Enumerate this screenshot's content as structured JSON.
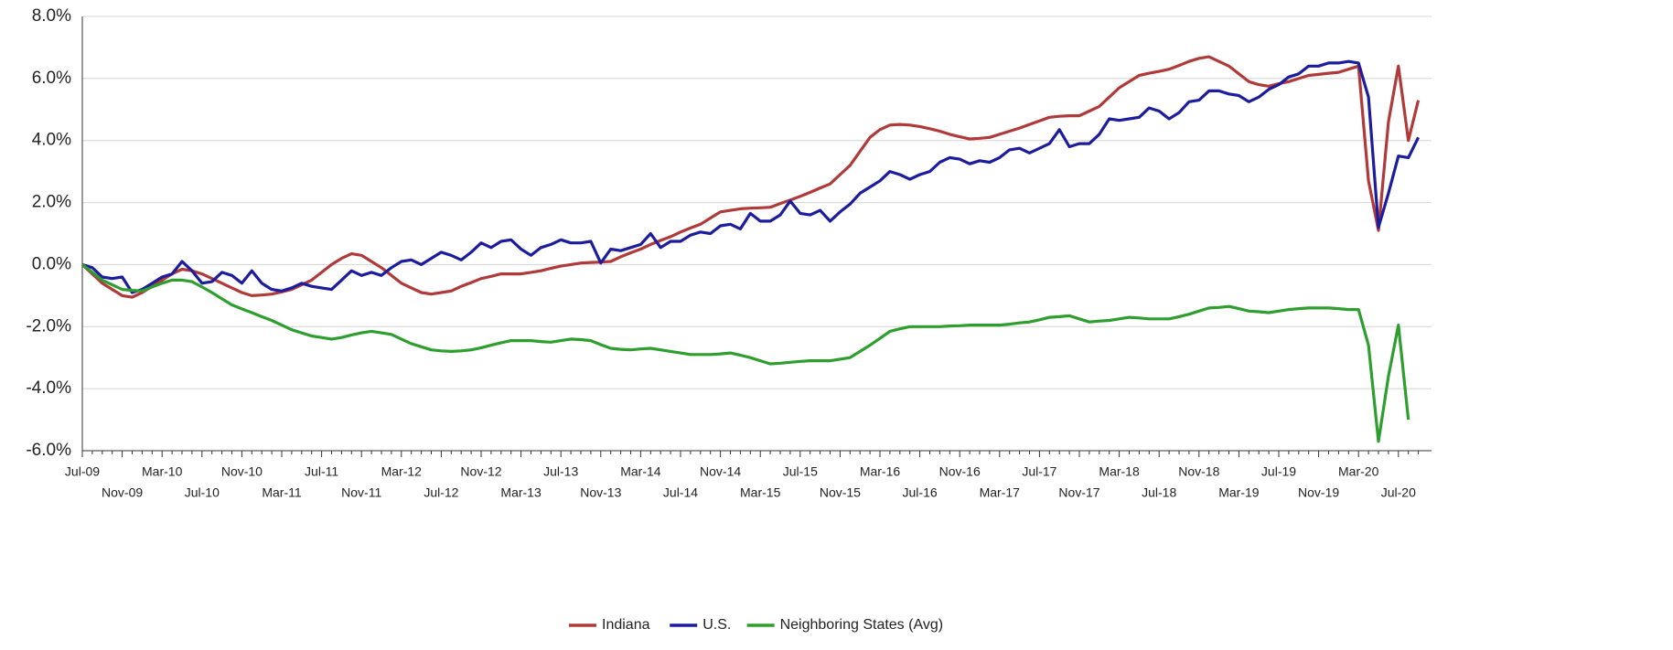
{
  "chart_data": {
    "type": "line",
    "categories": [
      "Jul-09",
      null,
      null,
      null,
      "Nov-09",
      null,
      null,
      null,
      "Mar-10",
      null,
      null,
      null,
      "Jul-10",
      null,
      null,
      null,
      "Nov-10",
      null,
      null,
      null,
      "Mar-11",
      null,
      null,
      null,
      "Jul-11",
      null,
      null,
      null,
      "Nov-11",
      null,
      null,
      null,
      "Mar-12",
      null,
      null,
      null,
      "Jul-12",
      null,
      null,
      null,
      "Nov-12",
      null,
      null,
      null,
      "Mar-13",
      null,
      null,
      null,
      "Jul-13",
      null,
      null,
      null,
      "Nov-13",
      null,
      null,
      null,
      "Mar-14",
      null,
      null,
      null,
      "Jul-14",
      null,
      null,
      null,
      "Nov-14",
      null,
      null,
      null,
      "Mar-15",
      null,
      null,
      null,
      "Jul-15",
      null,
      null,
      null,
      "Nov-15",
      null,
      null,
      null,
      "Mar-16",
      null,
      null,
      null,
      "Jul-16",
      null,
      null,
      null,
      "Nov-16",
      null,
      null,
      null,
      "Mar-17",
      null,
      null,
      null,
      "Jul-17",
      null,
      null,
      null,
      "Nov-17",
      null,
      null,
      null,
      "Mar-18",
      null,
      null,
      null,
      "Jul-18",
      null,
      null,
      null,
      "Nov-18",
      null,
      null,
      null,
      "Mar-19",
      null,
      null,
      null,
      "Jul-19",
      null,
      null,
      null,
      "Nov-19",
      null,
      null,
      null,
      "Mar-20",
      null,
      null,
      null,
      "Jul-20",
      null,
      null
    ],
    "series": [
      {
        "name": "Indiana",
        "color": "#b03a3a",
        "values": [
          0,
          -0.3,
          -0.6,
          -0.8,
          -1.0,
          -1.05,
          -0.9,
          -0.7,
          -0.5,
          -0.3,
          -0.15,
          -0.2,
          -0.3,
          -0.45,
          -0.6,
          -0.75,
          -0.9,
          -1.0,
          -0.98,
          -0.95,
          -0.88,
          -0.8,
          -0.65,
          -0.5,
          -0.25,
          0,
          0.2,
          0.35,
          0.3,
          0.1,
          -0.1,
          -0.35,
          -0.6,
          -0.75,
          -0.9,
          -0.95,
          -0.9,
          -0.85,
          -0.7,
          -0.58,
          -0.45,
          -0.38,
          -0.3,
          -0.3,
          -0.3,
          -0.25,
          -0.2,
          -0.12,
          -0.05,
          0,
          0.05,
          0.07,
          0.08,
          0.1,
          0.25,
          0.38,
          0.5,
          0.65,
          0.78,
          0.9,
          1.05,
          1.18,
          1.3,
          1.5,
          1.7,
          1.75,
          1.8,
          1.82,
          1.83,
          1.85,
          1.97,
          2.08,
          2.2,
          2.33,
          2.47,
          2.6,
          2.9,
          3.2,
          3.65,
          4.1,
          4.35,
          4.5,
          4.52,
          4.5,
          4.45,
          4.38,
          4.3,
          4.2,
          4.12,
          4.05,
          4.07,
          4.1,
          4.2,
          4.3,
          4.4,
          4.52,
          4.63,
          4.75,
          4.78,
          4.8,
          4.8,
          4.95,
          5.1,
          5.4,
          5.7,
          5.9,
          6.1,
          6.17,
          6.23,
          6.3,
          6.42,
          6.55,
          6.65,
          6.7,
          6.55,
          6.4,
          6.15,
          5.9,
          5.8,
          5.75,
          5.83,
          5.9,
          6.0,
          6.1,
          6.13,
          6.17,
          6.2,
          6.3,
          6.4,
          2.7,
          1.1,
          4.6,
          6.4,
          4.0,
          5.3
        ]
      },
      {
        "name": "U.S.",
        "color": "#1c1c9e",
        "values": [
          0,
          -0.1,
          -0.4,
          -0.45,
          -0.4,
          -0.9,
          -0.8,
          -0.6,
          -0.4,
          -0.3,
          0.1,
          -0.2,
          -0.6,
          -0.55,
          -0.25,
          -0.35,
          -0.6,
          -0.2,
          -0.6,
          -0.8,
          -0.85,
          -0.75,
          -0.6,
          -0.7,
          -0.75,
          -0.8,
          -0.5,
          -0.2,
          -0.35,
          -0.25,
          -0.35,
          -0.1,
          0.1,
          0.15,
          0,
          0.2,
          0.4,
          0.3,
          0.15,
          0.4,
          0.7,
          0.55,
          0.75,
          0.8,
          0.5,
          0.3,
          0.55,
          0.65,
          0.8,
          0.7,
          0.7,
          0.75,
          0.05,
          0.5,
          0.45,
          0.55,
          0.65,
          1.0,
          0.55,
          0.75,
          0.75,
          0.95,
          1.05,
          1.0,
          1.25,
          1.3,
          1.15,
          1.65,
          1.4,
          1.4,
          1.6,
          2.05,
          1.65,
          1.6,
          1.75,
          1.4,
          1.7,
          1.95,
          2.3,
          2.5,
          2.7,
          3.0,
          2.9,
          2.75,
          2.9,
          3.0,
          3.3,
          3.45,
          3.4,
          3.25,
          3.35,
          3.3,
          3.45,
          3.7,
          3.75,
          3.6,
          3.75,
          3.9,
          4.35,
          3.8,
          3.9,
          3.9,
          4.2,
          4.7,
          4.65,
          4.7,
          4.75,
          5.05,
          4.95,
          4.7,
          4.9,
          5.25,
          5.3,
          5.6,
          5.6,
          5.5,
          5.45,
          5.25,
          5.4,
          5.65,
          5.8,
          6.05,
          6.15,
          6.4,
          6.4,
          6.5,
          6.5,
          6.55,
          6.5,
          5.4,
          1.2,
          2.3,
          3.5,
          3.45,
          4.1
        ]
      },
      {
        "name": "Neighboring States (Avg)",
        "color": "#2e9e2e",
        "values": [
          0,
          -0.25,
          -0.5,
          -0.65,
          -0.8,
          -0.83,
          -0.85,
          -0.72,
          -0.6,
          -0.5,
          -0.5,
          -0.55,
          -0.72,
          -0.9,
          -1.1,
          -1.3,
          -1.43,
          -1.55,
          -1.68,
          -1.8,
          -1.95,
          -2.1,
          -2.2,
          -2.3,
          -2.35,
          -2.4,
          -2.35,
          -2.27,
          -2.2,
          -2.15,
          -2.2,
          -2.25,
          -2.4,
          -2.55,
          -2.65,
          -2.75,
          -2.78,
          -2.8,
          -2.78,
          -2.75,
          -2.68,
          -2.6,
          -2.52,
          -2.45,
          -2.45,
          -2.45,
          -2.48,
          -2.5,
          -2.45,
          -2.4,
          -2.42,
          -2.45,
          -2.58,
          -2.7,
          -2.73,
          -2.75,
          -2.72,
          -2.7,
          -2.75,
          -2.8,
          -2.85,
          -2.9,
          -2.9,
          -2.9,
          -2.88,
          -2.85,
          -2.92,
          -3.0,
          -3.1,
          -3.2,
          -3.18,
          -3.15,
          -3.12,
          -3.1,
          -3.1,
          -3.1,
          -3.05,
          -3.0,
          -2.8,
          -2.6,
          -2.38,
          -2.15,
          -2.07,
          -2.0,
          -2.0,
          -2.0,
          -2.0,
          -1.98,
          -1.97,
          -1.95,
          -1.95,
          -1.95,
          -1.95,
          -1.92,
          -1.88,
          -1.85,
          -1.78,
          -1.7,
          -1.68,
          -1.65,
          -1.75,
          -1.85,
          -1.82,
          -1.8,
          -1.75,
          -1.7,
          -1.72,
          -1.75,
          -1.75,
          -1.75,
          -1.68,
          -1.6,
          -1.5,
          -1.4,
          -1.38,
          -1.35,
          -1.42,
          -1.5,
          -1.52,
          -1.55,
          -1.5,
          -1.45,
          -1.42,
          -1.4,
          -1.4,
          -1.4,
          -1.42,
          -1.45,
          -1.45,
          -2.6,
          -5.7,
          -3.6,
          -1.95,
          -5.0,
          null
        ]
      }
    ],
    "ylim": [
      -6,
      8
    ],
    "yticks": [
      {
        "value": -6,
        "label": "-6.0%"
      },
      {
        "value": -4,
        "label": "-4.0%"
      },
      {
        "value": -2,
        "label": "-2.0%"
      },
      {
        "value": 0,
        "label": "0.0%"
      },
      {
        "value": 2,
        "label": "2.0%"
      },
      {
        "value": 4,
        "label": "4.0%"
      },
      {
        "value": 6,
        "label": "6.0%"
      },
      {
        "value": 8,
        "label": "8.0%"
      }
    ],
    "grid": true,
    "legend": "bottom"
  }
}
